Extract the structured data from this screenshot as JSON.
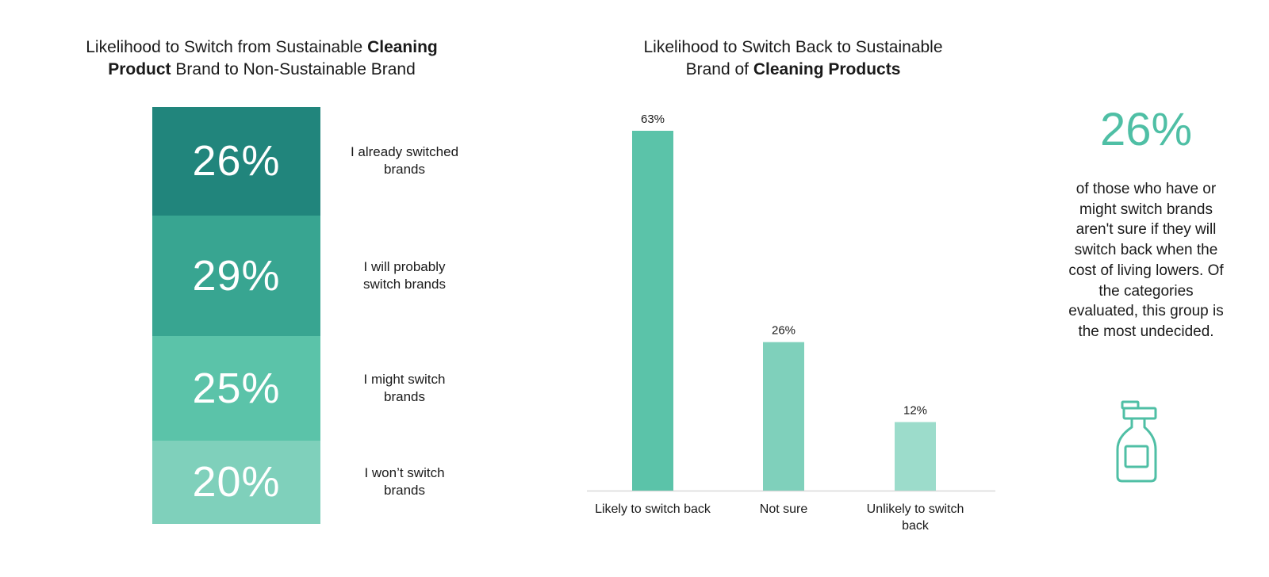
{
  "left_title": {
    "part1": "Likelihood to Switch from Sustainable ",
    "bold1": "Cleaning",
    "line_break_bold": "Product",
    "part2": " Brand to Non-Sustainable Brand"
  },
  "right_title": {
    "part1": "Likelihood to Switch Back to Sustainable",
    "part2": "Brand of ",
    "bold": "Cleaning Products"
  },
  "callout": {
    "percent": "26%",
    "text": "of those who have or might switch brands aren't sure if they will switch back when the cost of living lowers. Of the categories evaluated, this group is the most undecided.",
    "icon": "bottle-icon",
    "icon_color": "#4fbfa5"
  },
  "chart_data": [
    {
      "type": "bar",
      "stacked": true,
      "title": "Likelihood to Switch from Sustainable Cleaning Product Brand to Non-Sustainable Brand",
      "categories": [
        "I already switched brands",
        "I will probably switch brands",
        "I might switch brands",
        "I won't switch brands"
      ],
      "values": [
        26,
        29,
        25,
        20
      ],
      "value_labels": [
        "26%",
        "29%",
        "25%",
        "20%"
      ],
      "category_lines": [
        [
          "I already switched",
          "brands"
        ],
        [
          "I will probably",
          "switch brands"
        ],
        [
          "I might switch",
          "brands"
        ],
        [
          "I won’t switch",
          "brands"
        ]
      ],
      "colors": [
        "#21857c",
        "#38a591",
        "#5bc3a9",
        "#7fd0bb"
      ],
      "grid": false,
      "legend": "right"
    },
    {
      "type": "bar",
      "title": "Likelihood to Switch Back to Sustainable Brand of Cleaning Products",
      "categories": [
        "Likely to switch back",
        "Not sure",
        "Unlikely to switch back"
      ],
      "category_lines": [
        [
          "Likely to switch back"
        ],
        [
          "Not sure"
        ],
        [
          "Unlikely to switch",
          "back"
        ]
      ],
      "values": [
        63,
        26,
        12
      ],
      "value_labels": [
        "63%",
        "26%",
        "12%"
      ],
      "colors": [
        "#5bc3a9",
        "#7fd0bb",
        "#9cdccb"
      ],
      "ylim": [
        0,
        63
      ],
      "grid": false,
      "xlabel": "",
      "ylabel": ""
    }
  ]
}
